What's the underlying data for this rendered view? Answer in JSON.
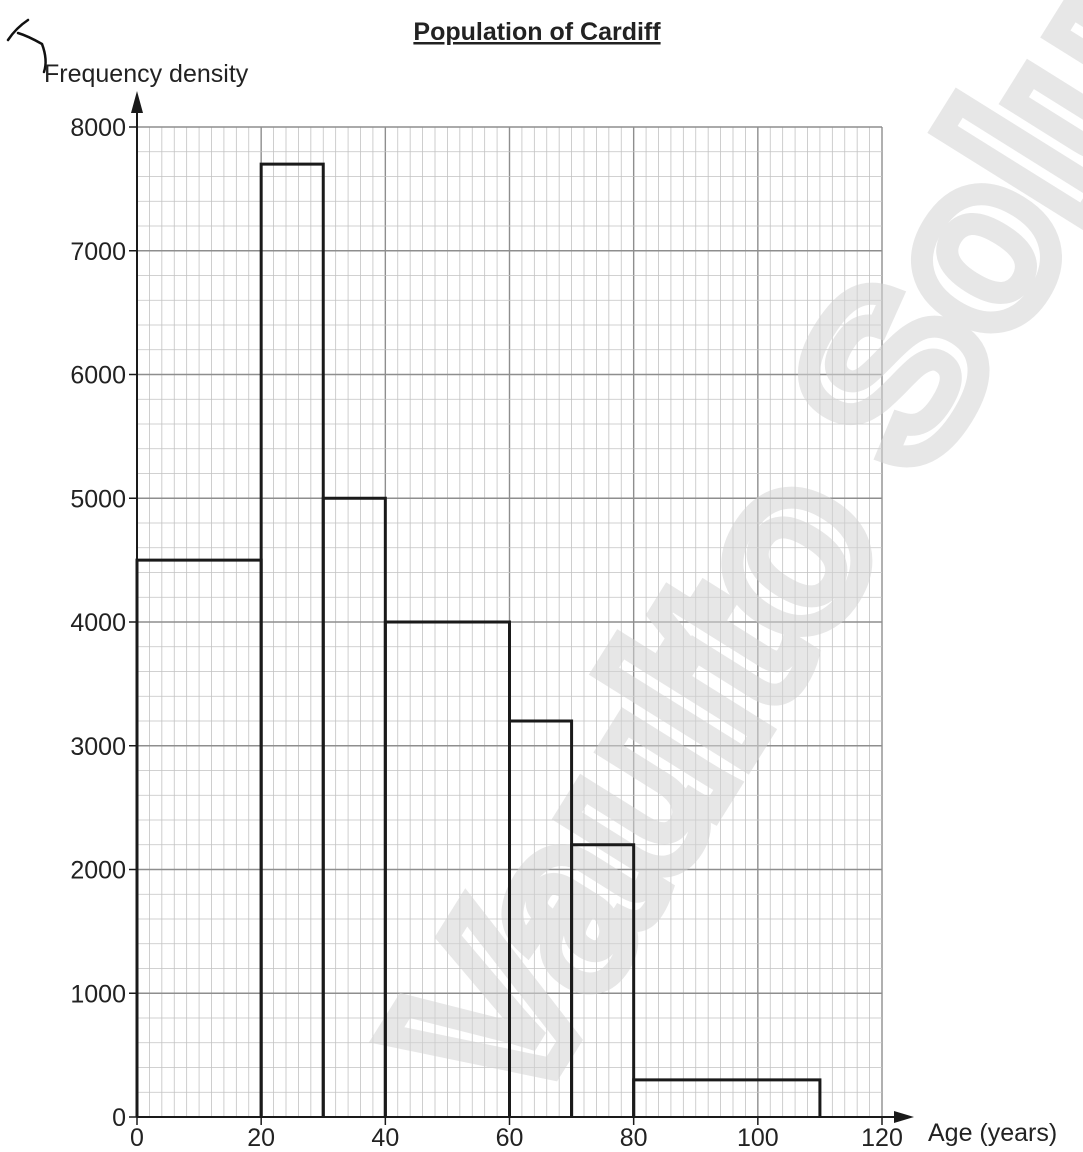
{
  "watermark": "Vaulto Solutions",
  "chart_data": {
    "type": "bar",
    "title": "Population of Cardiff",
    "xlabel": "Age (years)",
    "ylabel": "Frequency density",
    "xlim": [
      0,
      120
    ],
    "ylim": [
      0,
      8000
    ],
    "grid": true,
    "x_ticks": [
      0,
      20,
      40,
      60,
      80,
      100,
      120
    ],
    "y_ticks": [
      0,
      1000,
      2000,
      3000,
      4000,
      5000,
      6000,
      7000,
      8000
    ],
    "bins": [
      {
        "from": 0,
        "to": 20,
        "value": 4500
      },
      {
        "from": 20,
        "to": 30,
        "value": 7700
      },
      {
        "from": 30,
        "to": 40,
        "value": 5000
      },
      {
        "from": 40,
        "to": 60,
        "value": 4000
      },
      {
        "from": 60,
        "to": 70,
        "value": 3200
      },
      {
        "from": 70,
        "to": 80,
        "value": 2200
      },
      {
        "from": 80,
        "to": 110,
        "value": 300
      }
    ]
  }
}
